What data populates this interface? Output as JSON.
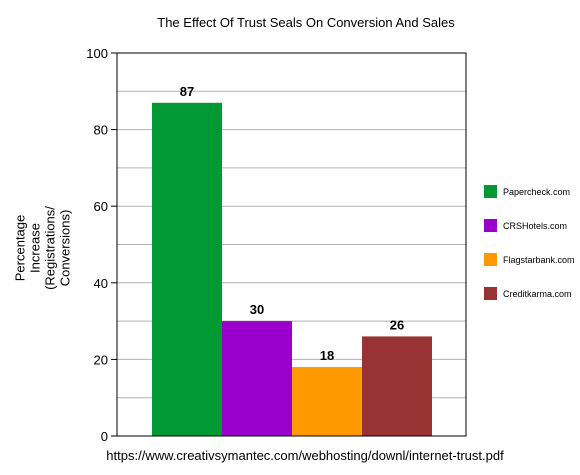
{
  "chart_data": {
    "type": "bar",
    "title": "The Effect Of Trust Seals On Conversion And Sales",
    "xlabel": "https://www.creativsymantec.com/webhosting/downl/internet-trust.pdf",
    "ylabel_lines": [
      "Percentage",
      "Increase",
      "(Registrations/",
      "Conversions)"
    ],
    "ylim": [
      0,
      100
    ],
    "yticks": [
      0,
      20,
      40,
      60,
      80,
      100
    ],
    "grid": true,
    "legend_position": "right",
    "series": [
      {
        "name": "Papercheck.com",
        "value": 87,
        "color": "#009933"
      },
      {
        "name": "CRSHotels.com",
        "value": 30,
        "color": "#9900cc"
      },
      {
        "name": "Flagstarbank.com",
        "value": 18,
        "color": "#ff9900"
      },
      {
        "name": "Creditkarma.com",
        "value": 26,
        "color": "#993333"
      }
    ]
  }
}
